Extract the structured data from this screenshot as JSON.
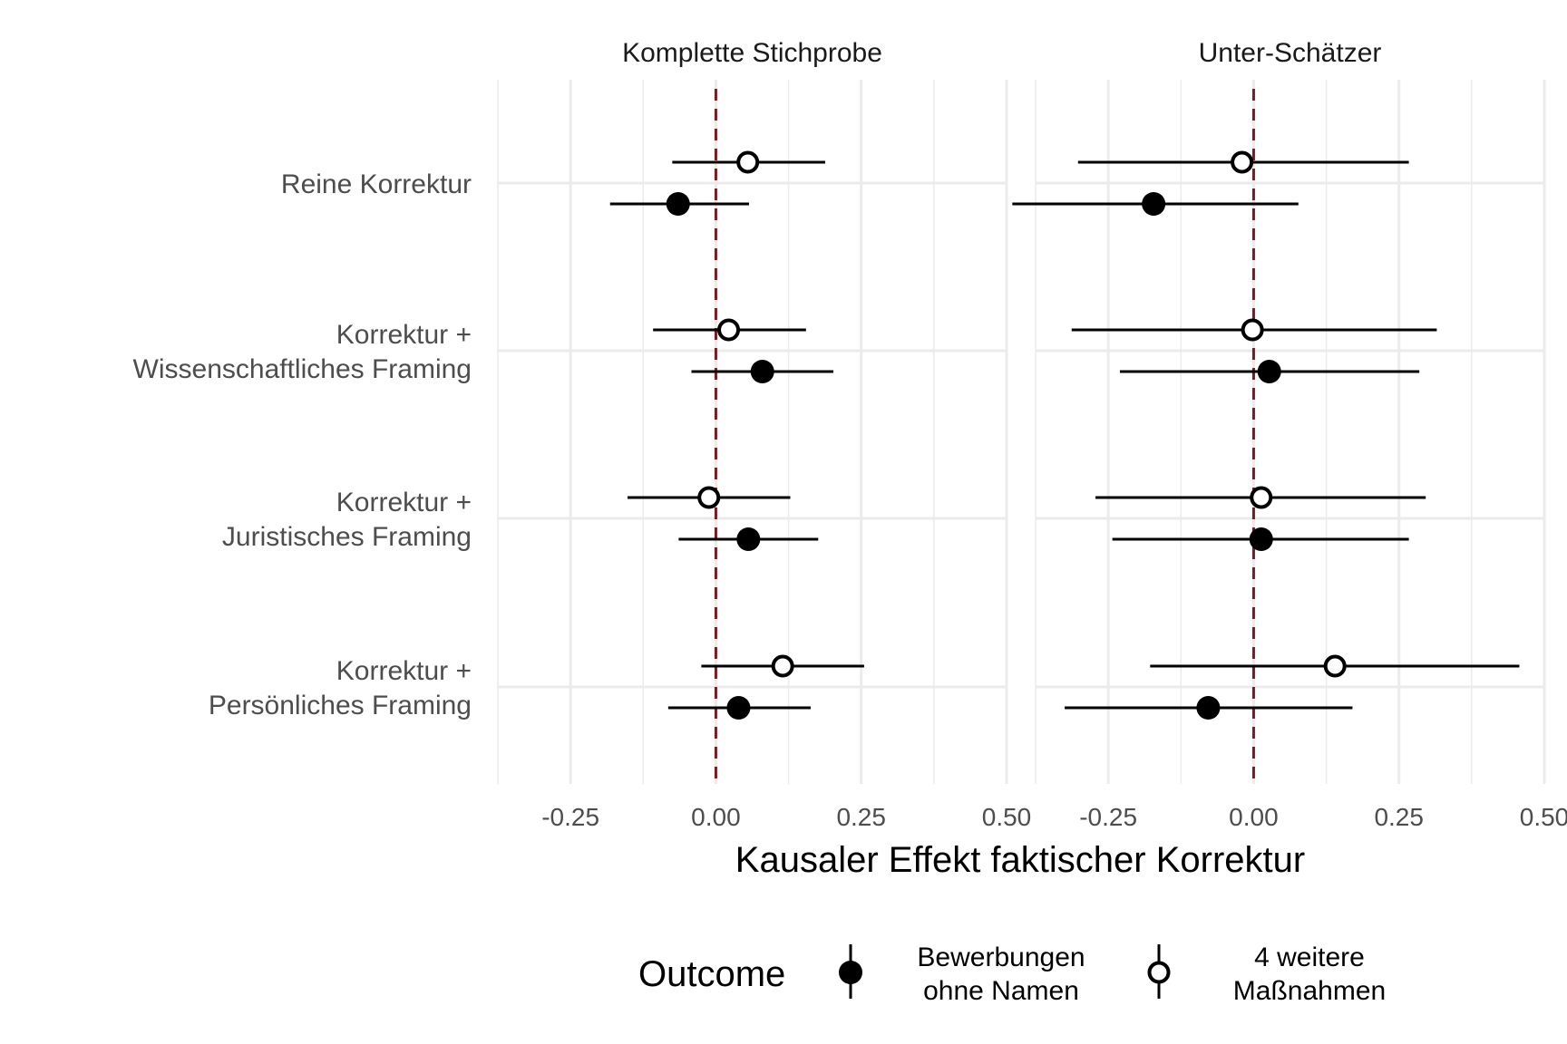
{
  "chart_data": {
    "type": "forest",
    "xlabel": "Kausaler Effekt faktischer Korrektur",
    "x_ticks": [
      "-0.25",
      "0.00",
      "0.25",
      "0.50"
    ],
    "xlim": [
      -0.375,
      0.5
    ],
    "reference_line": 0,
    "colors": {
      "reference_line": "#7a1a22",
      "points": "#000000",
      "grid": "#ebebeb"
    },
    "categories": [
      [
        "Reine Korrektur"
      ],
      [
        "Korrektur +",
        "Wissenschaftliches Framing"
      ],
      [
        "Korrektur +",
        "Juristisches Framing"
      ],
      [
        "Korrektur +",
        "Persönliches Framing"
      ]
    ],
    "legend": {
      "title": "Outcome",
      "position": "bottom",
      "items": [
        {
          "key": "bewerbungen",
          "lines": [
            "Bewerbungen",
            "ohne Namen"
          ],
          "shape": "filled-circle"
        },
        {
          "key": "massnahmen",
          "lines": [
            "4 weitere",
            "Maßnahmen"
          ],
          "shape": "open-circle"
        }
      ]
    },
    "panels": [
      {
        "title": "Komplette Stichprobe",
        "series": [
          {
            "name": "4 weitere Maßnahmen",
            "shape": "open-circle",
            "estimates": [
              0.055,
              0.022,
              -0.012,
              0.115
            ],
            "ci_low": [
              -0.075,
              -0.108,
              -0.152,
              -0.025
            ],
            "ci_high": [
              0.188,
              0.155,
              0.128,
              0.255
            ]
          },
          {
            "name": "Bewerbungen ohne Namen",
            "shape": "filled-circle",
            "estimates": [
              -0.065,
              0.08,
              0.056,
              0.039
            ],
            "ci_low": [
              -0.182,
              -0.042,
              -0.064,
              -0.082
            ],
            "ci_high": [
              0.057,
              0.202,
              0.176,
              0.163
            ]
          }
        ]
      },
      {
        "title": "Unter-Schätzer",
        "series": [
          {
            "name": "4 weitere Maßnahmen",
            "shape": "open-circle",
            "estimates": [
              -0.02,
              -0.002,
              0.013,
              0.14
            ],
            "ci_low": [
              -0.302,
              -0.313,
              -0.272,
              -0.178
            ],
            "ci_high": [
              0.267,
              0.315,
              0.296,
              0.457
            ]
          },
          {
            "name": "Bewerbungen ohne Namen",
            "shape": "filled-circle",
            "estimates": [
              -0.172,
              0.027,
              0.013,
              -0.078
            ],
            "ci_low": [
              -0.415,
              -0.23,
              -0.243,
              -0.325
            ],
            "ci_high": [
              0.077,
              0.285,
              0.267,
              0.17
            ]
          }
        ]
      }
    ]
  }
}
